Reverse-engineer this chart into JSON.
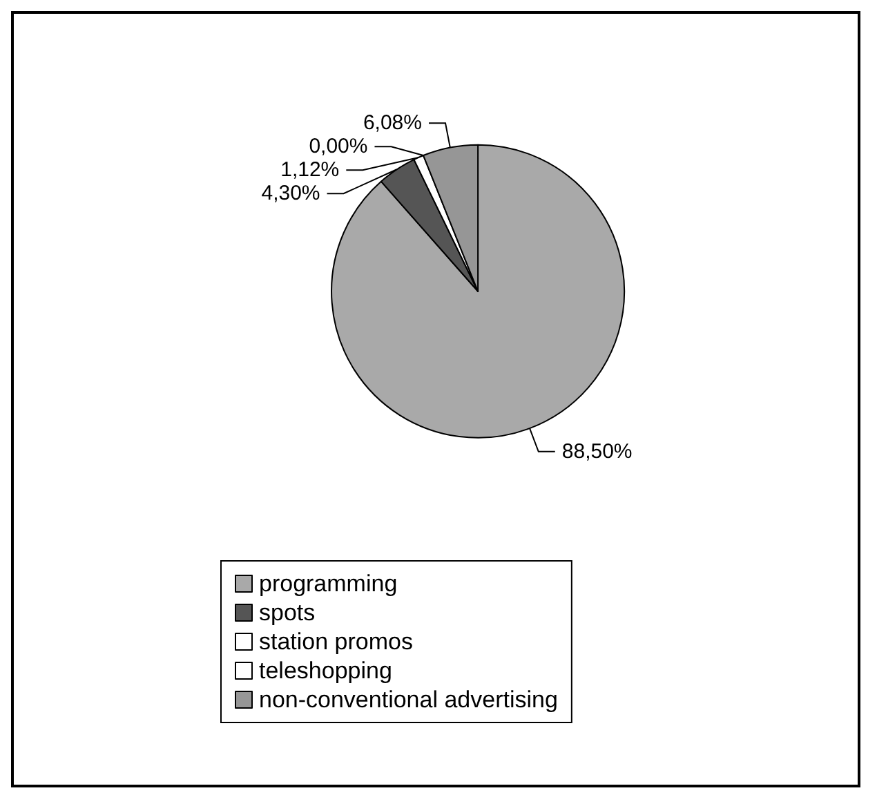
{
  "chart_data": {
    "type": "pie",
    "categories": [
      "programming",
      "spots",
      "station promos",
      "teleshopping",
      "non-conventional advertising"
    ],
    "values": [
      88.5,
      4.3,
      1.12,
      0.0,
      6.08
    ],
    "value_labels": [
      "88,50%",
      "4,30%",
      "1,12%",
      "0,00%",
      "6,08%"
    ],
    "colors": [
      "#a9a9a9",
      "#555555",
      "#ffffff",
      "#ffffff",
      "#969696"
    ],
    "legend": "bottom"
  }
}
